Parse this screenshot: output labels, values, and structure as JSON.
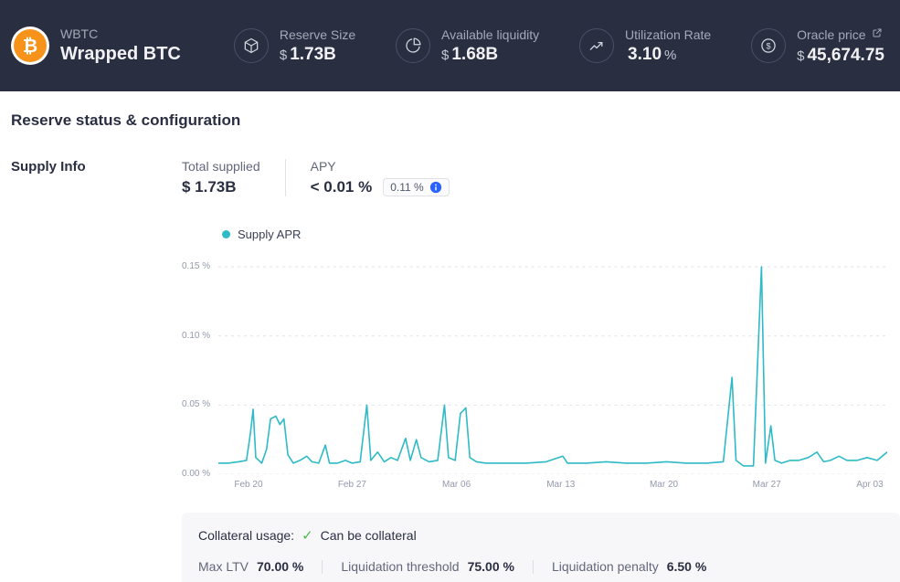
{
  "header": {
    "token": {
      "symbol": "WBTC",
      "name": "Wrapped BTC",
      "coin_glyph": "₿",
      "coin_color": "#f7931a"
    },
    "stats": [
      {
        "label": "Reserve Size",
        "prefix": "$",
        "amount": "1.73B",
        "suffix": ""
      },
      {
        "label": "Available liquidity",
        "prefix": "$",
        "amount": "1.68B",
        "suffix": ""
      },
      {
        "label": "Utilization Rate",
        "prefix": "",
        "amount": "3.10",
        "suffix": "%"
      },
      {
        "label": "Oracle price",
        "prefix": "$",
        "amount": "45,674.75",
        "suffix": ""
      }
    ]
  },
  "main": {
    "title": "Reserve status & configuration",
    "section_label": "Supply Info",
    "metrics": {
      "total_supplied_label": "Total supplied",
      "total_supplied_value": "$ 1.73B",
      "apy_label": "APY",
      "apy_value": "< 0.01 %",
      "apy_badge": "0.11 %"
    }
  },
  "chart_data": {
    "type": "line",
    "title": "Supply APR",
    "series_name": "Supply APR",
    "line_color": "#2ebac6",
    "xlabel": "",
    "ylabel": "Supply APR (%)",
    "ylim": [
      0,
      0.16
    ],
    "grid": "horizontal-dotted",
    "legend_position": "top-left",
    "y_ticks": [
      {
        "value": 0.0,
        "label": "0.00 %"
      },
      {
        "value": 0.05,
        "label": "0.05 %"
      },
      {
        "value": 0.1,
        "label": "0.10 %"
      },
      {
        "value": 0.15,
        "label": "0.15 %"
      }
    ],
    "x_ticks": [
      {
        "pos": 0.045,
        "label": "Feb 20"
      },
      {
        "pos": 0.2,
        "label": "Feb 27"
      },
      {
        "pos": 0.356,
        "label": "Mar 06"
      },
      {
        "pos": 0.512,
        "label": "Mar 13"
      },
      {
        "pos": 0.666,
        "label": "Mar 20"
      },
      {
        "pos": 0.82,
        "label": "Mar 27"
      },
      {
        "pos": 0.974,
        "label": "Apr 03"
      }
    ],
    "points": [
      [
        0.0,
        0.008
      ],
      [
        0.015,
        0.008
      ],
      [
        0.03,
        0.009
      ],
      [
        0.042,
        0.01
      ],
      [
        0.048,
        0.03
      ],
      [
        0.052,
        0.047
      ],
      [
        0.056,
        0.012
      ],
      [
        0.065,
        0.008
      ],
      [
        0.072,
        0.018
      ],
      [
        0.078,
        0.04
      ],
      [
        0.086,
        0.042
      ],
      [
        0.092,
        0.036
      ],
      [
        0.098,
        0.04
      ],
      [
        0.104,
        0.014
      ],
      [
        0.112,
        0.008
      ],
      [
        0.122,
        0.01
      ],
      [
        0.132,
        0.013
      ],
      [
        0.14,
        0.009
      ],
      [
        0.15,
        0.008
      ],
      [
        0.16,
        0.021
      ],
      [
        0.166,
        0.008
      ],
      [
        0.178,
        0.008
      ],
      [
        0.19,
        0.01
      ],
      [
        0.2,
        0.008
      ],
      [
        0.212,
        0.009
      ],
      [
        0.222,
        0.05
      ],
      [
        0.228,
        0.01
      ],
      [
        0.238,
        0.016
      ],
      [
        0.248,
        0.009
      ],
      [
        0.258,
        0.012
      ],
      [
        0.268,
        0.01
      ],
      [
        0.28,
        0.026
      ],
      [
        0.287,
        0.01
      ],
      [
        0.296,
        0.025
      ],
      [
        0.303,
        0.012
      ],
      [
        0.315,
        0.009
      ],
      [
        0.328,
        0.01
      ],
      [
        0.338,
        0.05
      ],
      [
        0.344,
        0.012
      ],
      [
        0.354,
        0.01
      ],
      [
        0.362,
        0.044
      ],
      [
        0.37,
        0.048
      ],
      [
        0.376,
        0.012
      ],
      [
        0.386,
        0.009
      ],
      [
        0.4,
        0.008
      ],
      [
        0.43,
        0.008
      ],
      [
        0.46,
        0.008
      ],
      [
        0.49,
        0.009
      ],
      [
        0.515,
        0.013
      ],
      [
        0.522,
        0.008
      ],
      [
        0.55,
        0.008
      ],
      [
        0.58,
        0.009
      ],
      [
        0.61,
        0.008
      ],
      [
        0.64,
        0.008
      ],
      [
        0.67,
        0.009
      ],
      [
        0.7,
        0.008
      ],
      [
        0.73,
        0.008
      ],
      [
        0.755,
        0.009
      ],
      [
        0.768,
        0.07
      ],
      [
        0.774,
        0.01
      ],
      [
        0.785,
        0.006
      ],
      [
        0.8,
        0.006
      ],
      [
        0.812,
        0.15
      ],
      [
        0.818,
        0.008
      ],
      [
        0.826,
        0.035
      ],
      [
        0.832,
        0.01
      ],
      [
        0.842,
        0.008
      ],
      [
        0.855,
        0.01
      ],
      [
        0.868,
        0.01
      ],
      [
        0.882,
        0.012
      ],
      [
        0.895,
        0.016
      ],
      [
        0.905,
        0.009
      ],
      [
        0.915,
        0.01
      ],
      [
        0.928,
        0.013
      ],
      [
        0.94,
        0.01
      ],
      [
        0.955,
        0.01
      ],
      [
        0.97,
        0.012
      ],
      [
        0.985,
        0.01
      ],
      [
        1.0,
        0.016
      ]
    ]
  },
  "collateral": {
    "usage_label": "Collateral usage:",
    "check_glyph": "✓",
    "usage_value": "Can be collateral",
    "items": [
      {
        "label": "Max LTV",
        "value": "70.00 %"
      },
      {
        "label": "Liquidation threshold",
        "value": "75.00 %"
      },
      {
        "label": "Liquidation penalty",
        "value": "6.50 %"
      }
    ]
  }
}
